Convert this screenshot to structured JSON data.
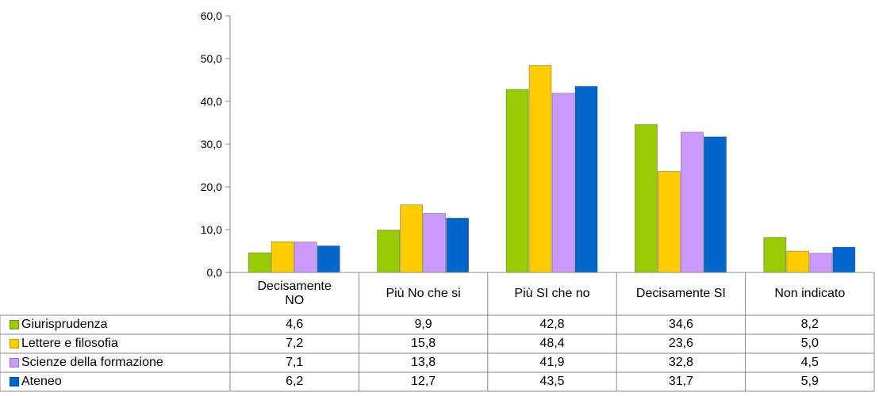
{
  "chart_data": {
    "type": "bar",
    "categories": [
      "Decisamente NO",
      "Più No che si",
      "Più SI che no",
      "Decisamente SI",
      "Non indicato"
    ],
    "category_lines": [
      [
        "Decisamente",
        "NO"
      ],
      [
        "Più No che si"
      ],
      [
        "Più SI che no"
      ],
      [
        "Decisamente SI"
      ],
      [
        "Non indicato"
      ]
    ],
    "series": [
      {
        "name": "Giurisprudenza",
        "color": "#99cc00",
        "values": [
          4.6,
          9.9,
          42.8,
          34.6,
          8.2
        ],
        "labels": [
          "4,6",
          "9,9",
          "42,8",
          "34,6",
          "8,2"
        ]
      },
      {
        "name": "Lettere e filosofia",
        "color": "#ffcc00",
        "values": [
          7.2,
          15.8,
          48.4,
          23.6,
          5.0
        ],
        "labels": [
          "7,2",
          "15,8",
          "48,4",
          "23,6",
          "5,0"
        ]
      },
      {
        "name": "Scienze della formazione",
        "color": "#cc99ff",
        "values": [
          7.1,
          13.8,
          41.9,
          32.8,
          4.5
        ],
        "labels": [
          "7,1",
          "13,8",
          "41,9",
          "32,8",
          "4,5"
        ]
      },
      {
        "name": "Ateneo",
        "color": "#0066cc",
        "values": [
          6.2,
          12.7,
          43.5,
          31.7,
          5.9
        ],
        "labels": [
          "6,2",
          "12,7",
          "43,5",
          "31,7",
          "5,9"
        ]
      }
    ],
    "ylim": [
      0,
      60
    ],
    "yticks": [
      "0,0",
      "10,0",
      "20,0",
      "30,0",
      "40,0",
      "50,0",
      "60,0"
    ],
    "grid": false,
    "legend": "data-table"
  }
}
